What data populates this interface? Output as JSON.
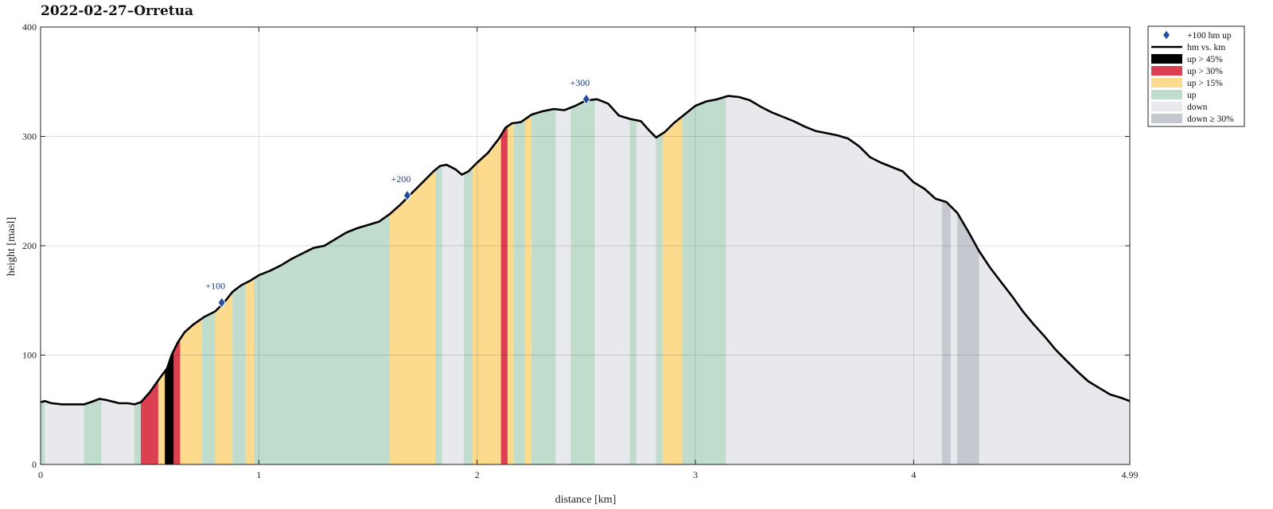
{
  "chart_data": {
    "type": "area",
    "title": "2022-02-27–Orretua",
    "xlabel": "distance [km]",
    "ylabel": "height [masl]",
    "xlim": [
      0,
      4.99
    ],
    "ylim": [
      0,
      400
    ],
    "x_ticks": [
      0,
      1,
      2,
      3,
      4,
      4.99
    ],
    "x_tick_labels": [
      "0",
      "1",
      "2",
      "3",
      "4",
      "4.99"
    ],
    "y_ticks": [
      0,
      100,
      200,
      300,
      400
    ],
    "grid": true,
    "legend_position": "outside-top-right",
    "legend": [
      {
        "key": "marker",
        "label": "+100 hm up"
      },
      {
        "key": "line",
        "label": "hm vs. km"
      },
      {
        "key": "up45",
        "label": "up > 45%"
      },
      {
        "key": "up30",
        "label": "up > 30%"
      },
      {
        "key": "up15",
        "label": "up > 15%"
      },
      {
        "key": "up",
        "label": "up"
      },
      {
        "key": "down",
        "label": "down"
      },
      {
        "key": "down30",
        "label": "down ≥ 30%"
      }
    ],
    "colors": {
      "line": "#000000",
      "marker": "#1f4f9e",
      "up45": "#000000",
      "up30": "#dc3f52",
      "up15": "#fddb8e",
      "up": "#c0dccd",
      "down": "#e8e9ec",
      "down30": "#c6c8d0"
    },
    "profile": [
      [
        0,
        57
      ],
      [
        0.02,
        58
      ],
      [
        0.05,
        56
      ],
      [
        0.1,
        55
      ],
      [
        0.15,
        55
      ],
      [
        0.2,
        55
      ],
      [
        0.23,
        57
      ],
      [
        0.27,
        60
      ],
      [
        0.3,
        59
      ],
      [
        0.36,
        56
      ],
      [
        0.4,
        56
      ],
      [
        0.43,
        55
      ],
      [
        0.46,
        57
      ],
      [
        0.5,
        66
      ],
      [
        0.55,
        80
      ],
      [
        0.58,
        88
      ],
      [
        0.6,
        100
      ],
      [
        0.63,
        112
      ],
      [
        0.66,
        121
      ],
      [
        0.7,
        128
      ],
      [
        0.75,
        135
      ],
      [
        0.8,
        140
      ],
      [
        0.84,
        148
      ],
      [
        0.88,
        158
      ],
      [
        0.92,
        164
      ],
      [
        0.96,
        168
      ],
      [
        1.0,
        173
      ],
      [
        1.05,
        177
      ],
      [
        1.1,
        182
      ],
      [
        1.15,
        188
      ],
      [
        1.2,
        193
      ],
      [
        1.25,
        198
      ],
      [
        1.3,
        200
      ],
      [
        1.35,
        206
      ],
      [
        1.4,
        212
      ],
      [
        1.45,
        216
      ],
      [
        1.5,
        219
      ],
      [
        1.55,
        222
      ],
      [
        1.6,
        229
      ],
      [
        1.65,
        238
      ],
      [
        1.7,
        248
      ],
      [
        1.75,
        258
      ],
      [
        1.8,
        268
      ],
      [
        1.83,
        273
      ],
      [
        1.86,
        274
      ],
      [
        1.9,
        270
      ],
      [
        1.93,
        265
      ],
      [
        1.96,
        268
      ],
      [
        2.0,
        276
      ],
      [
        2.05,
        285
      ],
      [
        2.1,
        298
      ],
      [
        2.13,
        308
      ],
      [
        2.16,
        312
      ],
      [
        2.2,
        313
      ],
      [
        2.25,
        320
      ],
      [
        2.3,
        323
      ],
      [
        2.35,
        325
      ],
      [
        2.4,
        324
      ],
      [
        2.45,
        328
      ],
      [
        2.5,
        333
      ],
      [
        2.55,
        334
      ],
      [
        2.6,
        330
      ],
      [
        2.65,
        319
      ],
      [
        2.7,
        316
      ],
      [
        2.75,
        314
      ],
      [
        2.79,
        305
      ],
      [
        2.82,
        299
      ],
      [
        2.86,
        304
      ],
      [
        2.9,
        312
      ],
      [
        2.95,
        320
      ],
      [
        3.0,
        328
      ],
      [
        3.05,
        332
      ],
      [
        3.1,
        334
      ],
      [
        3.15,
        337
      ],
      [
        3.2,
        336
      ],
      [
        3.25,
        333
      ],
      [
        3.3,
        327
      ],
      [
        3.35,
        322
      ],
      [
        3.4,
        318
      ],
      [
        3.45,
        314
      ],
      [
        3.5,
        309
      ],
      [
        3.55,
        305
      ],
      [
        3.6,
        303
      ],
      [
        3.65,
        301
      ],
      [
        3.7,
        298
      ],
      [
        3.75,
        291
      ],
      [
        3.8,
        281
      ],
      [
        3.85,
        276
      ],
      [
        3.9,
        272
      ],
      [
        3.95,
        268
      ],
      [
        4.0,
        258
      ],
      [
        4.05,
        252
      ],
      [
        4.1,
        243
      ],
      [
        4.15,
        240
      ],
      [
        4.2,
        230
      ],
      [
        4.25,
        213
      ],
      [
        4.3,
        195
      ],
      [
        4.35,
        180
      ],
      [
        4.4,
        167
      ],
      [
        4.45,
        154
      ],
      [
        4.5,
        140
      ],
      [
        4.55,
        128
      ],
      [
        4.6,
        117
      ],
      [
        4.65,
        105
      ],
      [
        4.7,
        95
      ],
      [
        4.75,
        85
      ],
      [
        4.8,
        76
      ],
      [
        4.85,
        70
      ],
      [
        4.9,
        64
      ],
      [
        4.95,
        61
      ],
      [
        4.99,
        58
      ]
    ],
    "segments": [
      [
        0,
        0.02,
        "up"
      ],
      [
        0.02,
        0.2,
        "down"
      ],
      [
        0.2,
        0.28,
        "up"
      ],
      [
        0.28,
        0.43,
        "down"
      ],
      [
        0.43,
        0.46,
        "up"
      ],
      [
        0.46,
        0.54,
        "up30"
      ],
      [
        0.54,
        0.57,
        "up15"
      ],
      [
        0.57,
        0.61,
        "up45"
      ],
      [
        0.61,
        0.64,
        "up30"
      ],
      [
        0.64,
        0.74,
        "up15"
      ],
      [
        0.74,
        0.8,
        "up"
      ],
      [
        0.8,
        0.88,
        "up15"
      ],
      [
        0.88,
        0.94,
        "up"
      ],
      [
        0.94,
        0.98,
        "up15"
      ],
      [
        0.98,
        1.6,
        "up"
      ],
      [
        1.6,
        1.81,
        "up15"
      ],
      [
        1.81,
        1.84,
        "up"
      ],
      [
        1.84,
        1.94,
        "down"
      ],
      [
        1.94,
        1.98,
        "up"
      ],
      [
        1.98,
        2.11,
        "up15"
      ],
      [
        2.11,
        2.14,
        "up30"
      ],
      [
        2.14,
        2.17,
        "up15"
      ],
      [
        2.17,
        2.22,
        "up"
      ],
      [
        2.22,
        2.25,
        "up15"
      ],
      [
        2.25,
        2.36,
        "up"
      ],
      [
        2.36,
        2.43,
        "down"
      ],
      [
        2.43,
        2.54,
        "up"
      ],
      [
        2.54,
        2.7,
        "down"
      ],
      [
        2.7,
        2.73,
        "up"
      ],
      [
        2.73,
        2.82,
        "down"
      ],
      [
        2.82,
        2.85,
        "up"
      ],
      [
        2.85,
        2.94,
        "up15"
      ],
      [
        2.94,
        3.14,
        "up"
      ],
      [
        3.14,
        4.13,
        "down"
      ],
      [
        4.13,
        4.17,
        "down30"
      ],
      [
        4.17,
        4.2,
        "down"
      ],
      [
        4.2,
        4.3,
        "down30"
      ],
      [
        4.3,
        4.99,
        "down"
      ]
    ],
    "markers": [
      {
        "x": 0.83,
        "y": 148,
        "label": "+100"
      },
      {
        "x": 1.68,
        "y": 246,
        "label": "+200"
      },
      {
        "x": 2.5,
        "y": 334,
        "label": "+300"
      }
    ]
  }
}
